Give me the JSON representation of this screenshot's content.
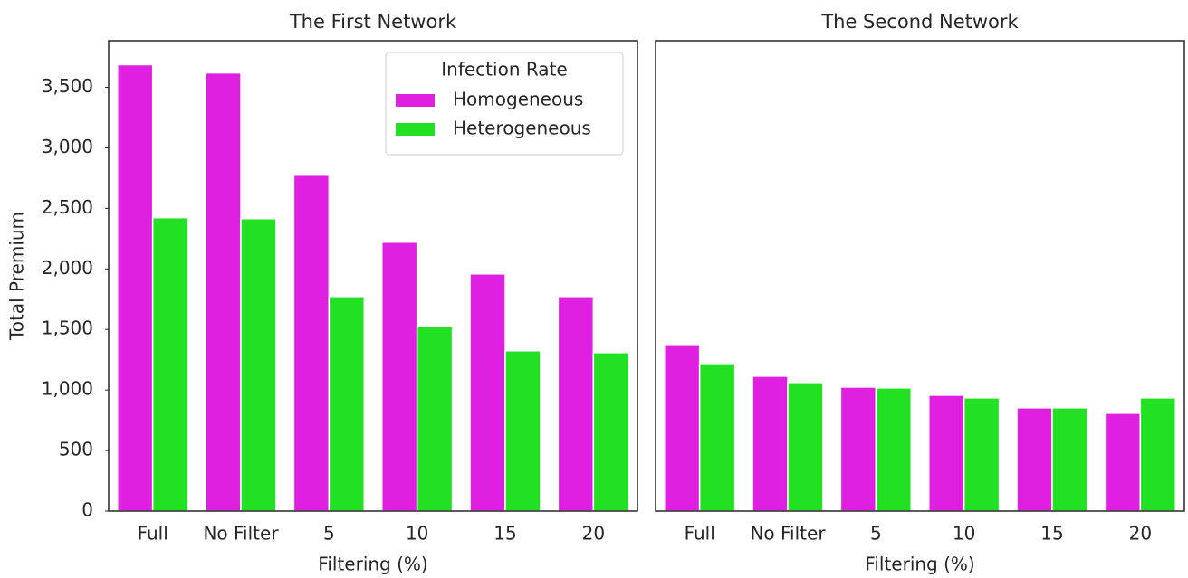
{
  "chart_data": [
    {
      "type": "bar",
      "title": "The First Network",
      "x_label": "Filtering (%)",
      "y_label": "Total Premium",
      "categories": [
        "Full",
        "No Filter",
        "5",
        "10",
        "15",
        "20"
      ],
      "series": [
        {
          "name": "Homogeneous",
          "color": "#e020e0",
          "values": [
            3687,
            3619,
            2774,
            2221,
            1959,
            1772
          ]
        },
        {
          "name": "Heterogeneous",
          "color": "#22e022",
          "values": [
            2423,
            2415,
            1772,
            1526,
            1324,
            1309
          ]
        }
      ],
      "ylim": [
        0,
        3885
      ],
      "yticks": [
        0,
        500,
        {
          "value": 1000,
          "label": "1,000"
        },
        {
          "value": 1500,
          "label": "1,500"
        },
        {
          "value": 2000,
          "label": "2,000"
        },
        {
          "value": 2500,
          "label": "2,500"
        },
        {
          "value": 3000,
          "label": "3,000"
        },
        {
          "value": 3500,
          "label": "3,500"
        }
      ],
      "legend": {
        "title": "Infection Rate",
        "loc": "upper right"
      }
    },
    {
      "type": "bar",
      "title": "The Second Network",
      "x_label": "Filtering (%)",
      "categories": [
        "Full",
        "No Filter",
        "5",
        "10",
        "15",
        "20"
      ],
      "series": [
        {
          "color": "#e020e0",
          "values": [
            1376,
            1114,
            1024,
            957,
            853,
            808
          ]
        },
        {
          "color": "#22e022",
          "values": [
            1219,
            1062,
            1017,
            935,
            853,
            935
          ]
        }
      ],
      "ylim": [
        0,
        3885
      ]
    }
  ]
}
